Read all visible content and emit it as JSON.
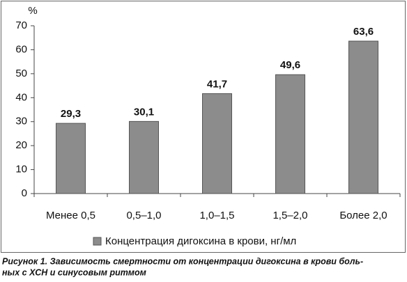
{
  "chart_data": {
    "type": "bar",
    "y_label": "%",
    "categories": [
      "Менее 0,5",
      "0,5–1,0",
      "1,0–1,5",
      "1,5–2,0",
      "Более 2,0"
    ],
    "series": [
      {
        "name": "Концентрация дигоксина в крови, нг/мл",
        "color": "#8c8c8c",
        "values": [
          29.3,
          30.1,
          41.7,
          49.6,
          63.6
        ],
        "value_labels": [
          "29,3",
          "30,1",
          "41,7",
          "49,6",
          "63,6"
        ]
      }
    ],
    "ylim": [
      0,
      70
    ],
    "yticks": [
      0,
      10,
      20,
      30,
      40,
      50,
      60,
      70
    ],
    "grid": false
  },
  "caption": [
    "Рисунок 1. Зависимость смертности от концентрации дигоксина в крови боль-",
    "ных с ХСН и синусовым ритмом"
  ]
}
